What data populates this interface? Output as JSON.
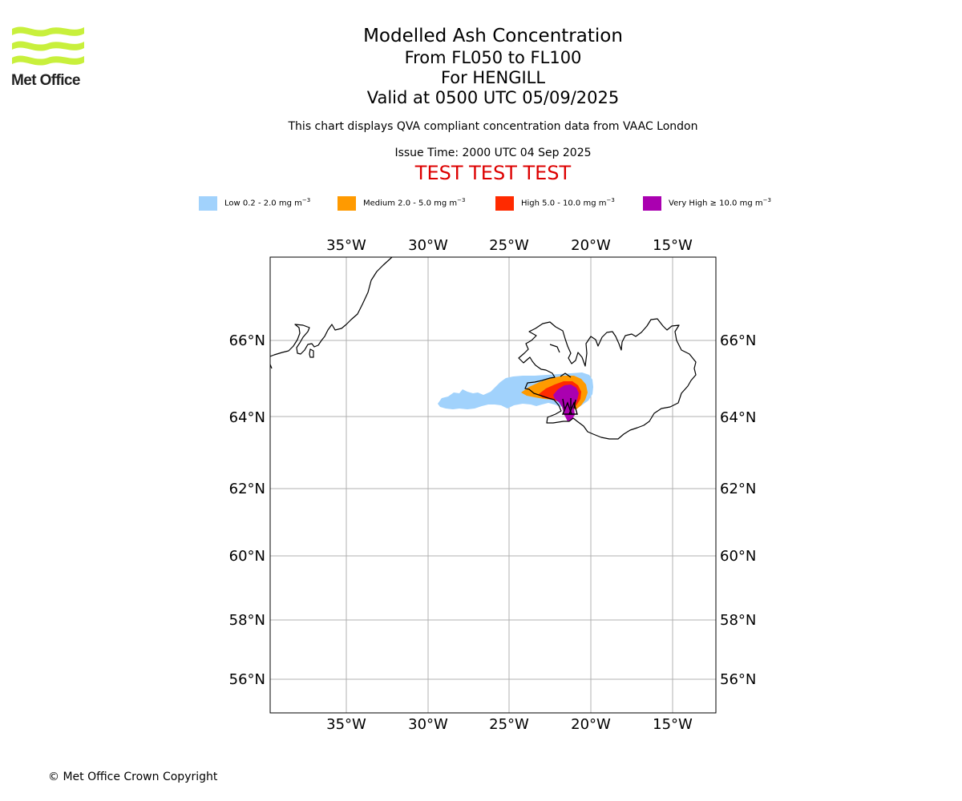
{
  "branding": {
    "logo_text": "Met Office",
    "logo_color": "#c8f03c"
  },
  "header": {
    "title": "Modelled Ash Concentration",
    "flight_levels": "From FL050 to FL100",
    "location": "For HENGILL",
    "valid_time": "Valid at 0500 UTC 05/09/2025",
    "qva_note": "This chart displays QVA compliant concentration data from VAAC London",
    "issue_time": "Issue Time: 2000 UTC 04 Sep 2025",
    "test_banner": "TEST TEST TEST",
    "test_banner_color": "#dd0000"
  },
  "legend": {
    "unit": "mg m",
    "unit_exponent": "−3",
    "items": [
      {
        "label": "Low 0.2 - 2.0",
        "color": "#a1d2fc"
      },
      {
        "label": "Medium 2.0 - 5.0",
        "color": "#ff9a00"
      },
      {
        "label": "High 5.0 - 10.0",
        "color": "#ff2a00"
      },
      {
        "label": "Very High ≥ 10.0",
        "color": "#aa00b0"
      }
    ]
  },
  "map": {
    "projection": "mercator",
    "lon_range": [
      -39.4,
      -12.6
    ],
    "lat_range": [
      55.0,
      68.4
    ],
    "grid": true,
    "lon_ticks": [
      "35°W",
      "30°W",
      "25°W",
      "20°W",
      "15°W"
    ],
    "lon_tick_values": [
      -35,
      -30,
      -25,
      -20,
      -15
    ],
    "lat_ticks": [
      "56°N",
      "58°N",
      "60°N",
      "62°N",
      "64°N",
      "66°N"
    ],
    "lat_tick_values": [
      56,
      58,
      60,
      62,
      64,
      66
    ],
    "coastlines": [
      "Greenland",
      "Iceland"
    ],
    "ash_levels": [
      "low",
      "medium",
      "high",
      "very_high"
    ]
  },
  "footer": {
    "copyright": "© Met Office Crown Copyright"
  }
}
